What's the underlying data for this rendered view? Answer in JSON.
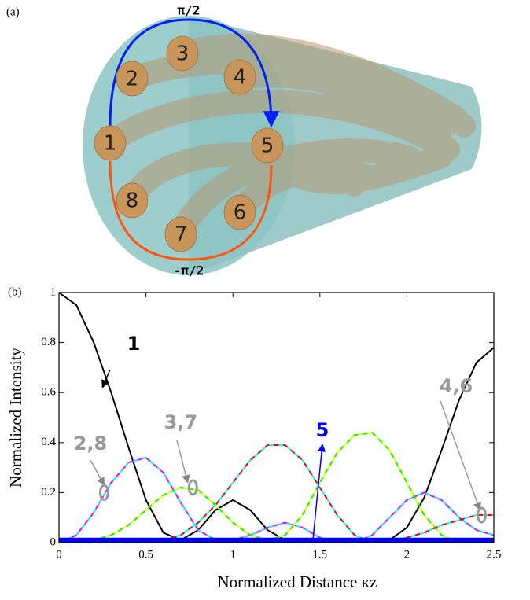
{
  "panel_a": {
    "label": "(a)",
    "top_phase": "π/2",
    "bottom_phase": "-π/2",
    "cores": [
      "1",
      "2",
      "3",
      "4",
      "5",
      "6",
      "7",
      "8"
    ]
  },
  "chart_data": {
    "type": "line",
    "panel_label": "(b)",
    "x_label": "Normalized Distance κz",
    "y_label": "Normalized Intensity",
    "x": [
      0,
      0.1,
      0.2,
      0.3,
      0.4,
      0.5,
      0.6,
      0.7,
      0.8,
      0.9,
      1.0,
      1.1,
      1.2,
      1.3,
      1.4,
      1.5,
      1.6,
      1.7,
      1.8,
      1.9,
      2.0,
      2.1,
      2.2,
      2.3,
      2.4,
      2.5
    ],
    "series": [
      {
        "name": "1",
        "color": "#000000",
        "values": [
          1,
          0.95,
          0.8,
          0.6,
          0.38,
          0.17,
          0.04,
          0.01,
          0.05,
          0.13,
          0.17,
          0.13,
          0.05,
          0.01,
          0,
          0,
          0,
          0,
          0,
          0.01,
          0.06,
          0.18,
          0.37,
          0.57,
          0.72,
          0.78
        ]
      },
      {
        "name": "2,8",
        "color": "#ff00ff",
        "dash_color": "#00ffff",
        "values": [
          0,
          0.03,
          0.12,
          0.24,
          0.32,
          0.34,
          0.28,
          0.16,
          0.05,
          0.01,
          0.01,
          0.03,
          0.06,
          0.08,
          0.06,
          0.02,
          0,
          0,
          0.03,
          0.1,
          0.17,
          0.2,
          0.17,
          0.1,
          0.05,
          0.03
        ]
      },
      {
        "name": "3,7",
        "color": "#00ff00",
        "dash_color": "#ffff00",
        "values": [
          0,
          0,
          0.01,
          0.03,
          0.07,
          0.13,
          0.19,
          0.22,
          0.21,
          0.15,
          0.08,
          0.03,
          0.01,
          0.03,
          0.11,
          0.24,
          0.36,
          0.43,
          0.44,
          0.37,
          0.24,
          0.11,
          0.03,
          0,
          0.01,
          0.01
        ]
      },
      {
        "name": "4,6",
        "color": "#00ffff",
        "dash_color": "#ff0000",
        "values": [
          0,
          0,
          0,
          0,
          0,
          0,
          0.01,
          0.03,
          0.08,
          0.15,
          0.24,
          0.33,
          0.39,
          0.39,
          0.33,
          0.22,
          0.11,
          0.03,
          0,
          0.01,
          0.02,
          0.04,
          0.07,
          0.09,
          0.11,
          0.11
        ]
      },
      {
        "name": "5",
        "color": "#0000ff",
        "values": [
          0.01,
          0.01,
          0.01,
          0.01,
          0.01,
          0.01,
          0.01,
          0.01,
          0.01,
          0.01,
          0.01,
          0.01,
          0.01,
          0.01,
          0.01,
          0.01,
          0.01,
          0.01,
          0.01,
          0.01,
          0.01,
          0.01,
          0.01,
          0.01,
          0.01,
          0.01
        ]
      }
    ],
    "xlim": [
      0,
      2.5
    ],
    "ylim": [
      0,
      1
    ],
    "xticks": [
      0,
      0.5,
      1,
      1.5,
      2,
      2.5
    ],
    "yticks": [
      0,
      0.2,
      0.4,
      0.6,
      0.8,
      1
    ]
  }
}
